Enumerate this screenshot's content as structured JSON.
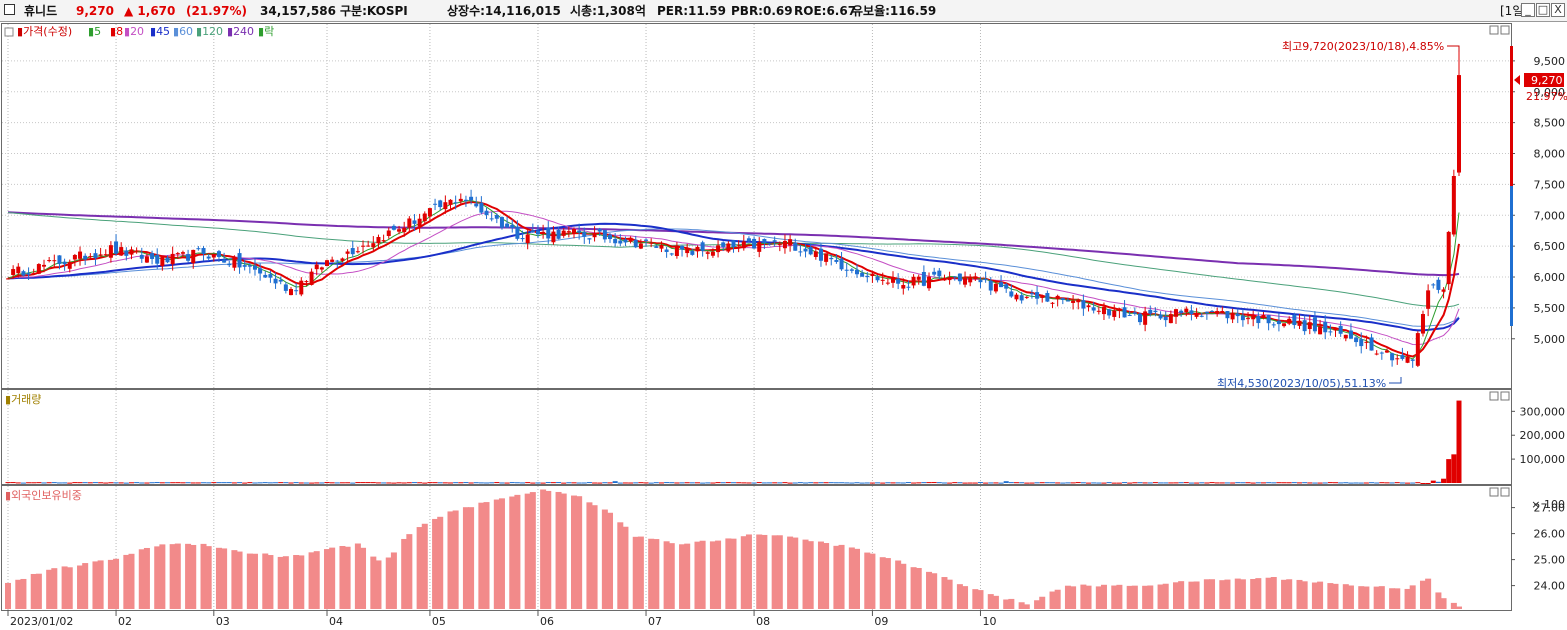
{
  "header": {
    "name": "휴니드",
    "price": "9,270",
    "change": "▲ 1,670",
    "change_pct": "(21.97%)",
    "volume": "34,157,586",
    "market": "구분:KOSPI",
    "shares": "상장수:14,116,015",
    "mcap": "시총:1,308억",
    "per": "PER:11.59",
    "pbr": "PBR:0.69",
    "roe": "ROE:6.67",
    "reserve": "유보율:116.59",
    "period": "[1일]",
    "btn_min": "_",
    "btn_max": "□",
    "btn_close": "X"
  },
  "legend": {
    "price": "가격(수정)",
    "ma5": "5",
    "ma8": "8",
    "ma20": "20",
    "ma45": "45",
    "ma60": "60",
    "ma120": "120",
    "ma240": "240",
    "rak": "락"
  },
  "annotations": {
    "high": "최고9,720(2023/10/18),4.85%",
    "low": "최저4,530(2023/10/05),51.13%",
    "last_price": "9,270",
    "last_pct": "21.97%"
  },
  "volume_panel": {
    "title": "거래량"
  },
  "foreign_panel": {
    "title": "외국인보유비중"
  },
  "colors": {
    "up": "#e00000",
    "down": "#1f6fd1",
    "ma5": "#2e9e2e",
    "ma20": "#c44fc4",
    "ma45": "#1a2fc9",
    "ma60": "#5a8fd8",
    "ma120": "#4aa17a",
    "ma240": "#7a2fb0",
    "foreign_bar": "#f28a8a"
  },
  "chart_data": [
    {
      "type": "candlestick",
      "title": "가격(수정)",
      "x_ticks": [
        "2023/01/02",
        "02",
        "03",
        "04",
        "05",
        "06",
        "07",
        "08",
        "09",
        "10"
      ],
      "y_ticks": [
        5000,
        5500,
        6000,
        6500,
        7000,
        7500,
        8000,
        8500,
        9000,
        9500
      ],
      "y_tick_labels": [
        "5,000",
        "5,500",
        "6,000",
        "6,500",
        "7,000",
        "7,500",
        "8,000",
        "8,500",
        "9,000",
        "9,500"
      ],
      "ylim": [
        4300,
        10000
      ],
      "high": 9720,
      "low": 4530,
      "last": 9270,
      "note": "daily OHLC generated by script from anchor closes",
      "close_anchors": [
        [
          0,
          6050
        ],
        [
          8,
          6200
        ],
        [
          20,
          6450
        ],
        [
          30,
          6250
        ],
        [
          38,
          6400
        ],
        [
          48,
          6100
        ],
        [
          55,
          5800
        ],
        [
          62,
          6250
        ],
        [
          75,
          6750
        ],
        [
          88,
          7300
        ],
        [
          99,
          6700
        ],
        [
          110,
          6700
        ],
        [
          120,
          6600
        ],
        [
          132,
          6400
        ],
        [
          143,
          6500
        ],
        [
          152,
          6550
        ],
        [
          162,
          6200
        ],
        [
          170,
          5950
        ],
        [
          175,
          5900
        ],
        [
          182,
          6000
        ],
        [
          189,
          5950
        ],
        [
          195,
          5700
        ],
        [
          206,
          5600
        ],
        [
          220,
          5350
        ],
        [
          232,
          5450
        ],
        [
          250,
          5250
        ],
        [
          262,
          5000
        ],
        [
          270,
          4700
        ],
        [
          273,
          4650
        ],
        [
          276,
          5800
        ],
        [
          279,
          5850
        ],
        [
          281,
          7600
        ],
        [
          282,
          9270
        ]
      ]
    },
    {
      "type": "bar",
      "title": "거래량",
      "y_ticks": [
        300000,
        200000,
        100000
      ],
      "y_tick_labels": [
        "300,000",
        "200,000",
        "100,000",
        "× 100"
      ],
      "values_last": [
        0,
        0,
        10000,
        5000,
        18000,
        100000,
        120000,
        345000
      ]
    },
    {
      "type": "bar",
      "title": "외국인보유비중",
      "y_ticks": [
        24.0,
        25.0,
        26.0,
        27.0
      ],
      "y_tick_labels": [
        "24.00",
        "25.00",
        "26.00",
        "27.00"
      ],
      "ylim": [
        23.1,
        27.6
      ],
      "anchors": [
        [
          0,
          24.1
        ],
        [
          8,
          24.6
        ],
        [
          20,
          25.0
        ],
        [
          30,
          25.6
        ],
        [
          38,
          25.6
        ],
        [
          45,
          25.3
        ],
        [
          55,
          25.1
        ],
        [
          62,
          25.4
        ],
        [
          68,
          25.6
        ],
        [
          73,
          24.8
        ],
        [
          78,
          26.0
        ],
        [
          85,
          26.8
        ],
        [
          95,
          27.3
        ],
        [
          104,
          27.7
        ],
        [
          110,
          27.5
        ],
        [
          117,
          26.8
        ],
        [
          122,
          25.9
        ],
        [
          130,
          25.6
        ],
        [
          140,
          25.8
        ],
        [
          146,
          26.0
        ],
        [
          154,
          25.8
        ],
        [
          163,
          25.5
        ],
        [
          172,
          25.0
        ],
        [
          182,
          24.3
        ],
        [
          192,
          23.6
        ],
        [
          198,
          23.3
        ],
        [
          206,
          24.0
        ],
        [
          220,
          24.0
        ],
        [
          232,
          24.2
        ],
        [
          246,
          24.3
        ],
        [
          262,
          24.0
        ],
        [
          272,
          23.9
        ],
        [
          276,
          24.3
        ],
        [
          279,
          23.5
        ],
        [
          282,
          23.2
        ]
      ]
    }
  ]
}
